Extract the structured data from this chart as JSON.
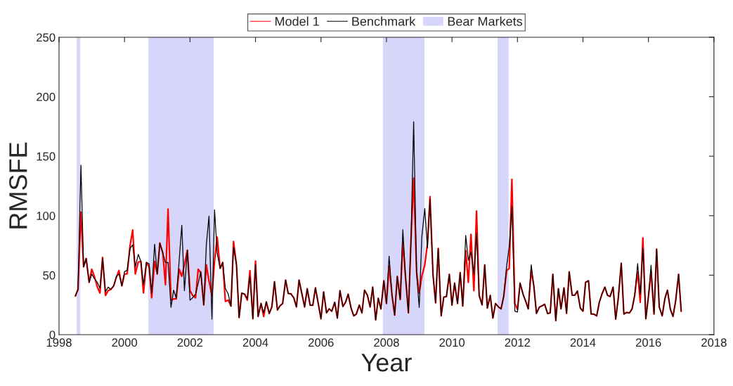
{
  "chart_data": {
    "type": "line",
    "xlabel": "Year",
    "ylabel": "RMSFE",
    "xlim": [
      1998,
      2018
    ],
    "xticks": [
      1998,
      2000,
      2002,
      2004,
      2006,
      2008,
      2010,
      2012,
      2014,
      2016,
      2018
    ],
    "ylim": [
      0,
      250
    ],
    "yticks": [
      0,
      50,
      100,
      150,
      200,
      250
    ],
    "grid": false,
    "legend": "top",
    "x": [
      1998.5,
      1998.58,
      1998.67,
      1998.75,
      1998.83,
      1998.92,
      1999.0,
      1999.08,
      1999.17,
      1999.25,
      1999.33,
      1999.42,
      1999.5,
      1999.58,
      1999.67,
      1999.75,
      1999.83,
      1999.92,
      2000.0,
      2000.08,
      2000.17,
      2000.25,
      2000.33,
      2000.42,
      2000.5,
      2000.58,
      2000.67,
      2000.75,
      2000.83,
      2000.92,
      2001.0,
      2001.08,
      2001.17,
      2001.25,
      2001.33,
      2001.42,
      2001.5,
      2001.58,
      2001.67,
      2001.75,
      2001.83,
      2001.92,
      2002.0,
      2002.08,
      2002.17,
      2002.25,
      2002.33,
      2002.42,
      2002.5,
      2002.58,
      2002.67,
      2002.75,
      2002.83,
      2002.92,
      2003.0,
      2003.08,
      2003.17,
      2003.25,
      2003.33,
      2003.42,
      2003.5,
      2003.58,
      2003.67,
      2003.75,
      2003.83,
      2003.92,
      2004.0,
      2004.08,
      2004.17,
      2004.25,
      2004.33,
      2004.42,
      2004.5,
      2004.58,
      2004.67,
      2004.75,
      2004.83,
      2004.92,
      2005.0,
      2005.08,
      2005.17,
      2005.25,
      2005.33,
      2005.42,
      2005.5,
      2005.58,
      2005.67,
      2005.75,
      2005.83,
      2005.92,
      2006.0,
      2006.08,
      2006.17,
      2006.25,
      2006.33,
      2006.42,
      2006.5,
      2006.58,
      2006.67,
      2006.75,
      2006.83,
      2006.92,
      2007.0,
      2007.08,
      2007.17,
      2007.25,
      2007.33,
      2007.42,
      2007.5,
      2007.58,
      2007.67,
      2007.75,
      2007.83,
      2007.92,
      2008.0,
      2008.08,
      2008.17,
      2008.25,
      2008.33,
      2008.42,
      2008.5,
      2008.58,
      2008.67,
      2008.75,
      2008.83,
      2008.92,
      2009.0,
      2009.08,
      2009.17,
      2009.25,
      2009.33,
      2009.42,
      2009.5,
      2009.58,
      2009.67,
      2009.75,
      2009.83,
      2009.92,
      2010.0,
      2010.08,
      2010.17,
      2010.25,
      2010.33,
      2010.42,
      2010.5,
      2010.58,
      2010.67,
      2010.75,
      2010.83,
      2010.92,
      2011.0,
      2011.08,
      2011.17,
      2011.25,
      2011.33,
      2011.42,
      2011.5,
      2011.58,
      2011.67,
      2011.75,
      2011.83,
      2011.92,
      2012.0,
      2012.08,
      2012.17,
      2012.25,
      2012.33,
      2012.42,
      2012.5,
      2012.58,
      2012.67,
      2012.75,
      2012.83,
      2012.92,
      2013.0,
      2013.08,
      2013.17,
      2013.25,
      2013.33,
      2013.42,
      2013.5,
      2013.58,
      2013.67,
      2013.75,
      2013.83,
      2013.92,
      2014.0,
      2014.08,
      2014.17,
      2014.25,
      2014.33,
      2014.42,
      2014.5,
      2014.58,
      2014.67,
      2014.75,
      2014.83,
      2014.92,
      2015.0,
      2015.08,
      2015.17,
      2015.25,
      2015.33,
      2015.42,
      2015.5,
      2015.58,
      2015.67,
      2015.75,
      2015.83,
      2015.92,
      2016.0,
      2016.08,
      2016.17,
      2016.25,
      2016.33,
      2016.42,
      2016.5,
      2016.58,
      2016.67,
      2016.75,
      2016.83,
      2016.92,
      2017.0
    ],
    "series": [
      {
        "name": "Model 1",
        "color": "#ff0000",
        "values": [
          32.5,
          38,
          103,
          57,
          64,
          44,
          55,
          49,
          40,
          35,
          65,
          33,
          37,
          38,
          41,
          48,
          54,
          41,
          51,
          51,
          75,
          88,
          51,
          61,
          61.6,
          35,
          60.7,
          57,
          31,
          61.6,
          51,
          77,
          68.6,
          42,
          105.6,
          29,
          30,
          30,
          55,
          49,
          58.7,
          71,
          37,
          33,
          31,
          55,
          52,
          25,
          58.7,
          45,
          33,
          62,
          82,
          55.7,
          60.7,
          28,
          29,
          24,
          78.4,
          58.7,
          14.4,
          35,
          34,
          29,
          53.8,
          13.3,
          61.8,
          15.3,
          26.2,
          15.3,
          27.6,
          17.8,
          23.3,
          44.5,
          20.7,
          24.3,
          26.2,
          45.9,
          34.6,
          34.4,
          31,
          23.3,
          45.9,
          34,
          23.3,
          38.6,
          24.7,
          24.7,
          39.4,
          25.7,
          13.3,
          36,
          18.3,
          21.7,
          19.7,
          27.2,
          14,
          37,
          23.7,
          27.2,
          34,
          22.3,
          15.8,
          17.3,
          24.9,
          18.3,
          37.4,
          33,
          23.3,
          40,
          12.4,
          30.6,
          21.6,
          45.3,
          26.2,
          57.7,
          33,
          16.4,
          49,
          29.5,
          78.4,
          49,
          18.4,
          80.4,
          131.6,
          52.8,
          35,
          49,
          58.7,
          76,
          116,
          50.8,
          26.8,
          72.5,
          15.9,
          31.6,
          32,
          50.7,
          24.8,
          43.3,
          26.2,
          52.2,
          24,
          70.5,
          44,
          84.3,
          37,
          104,
          33,
          25,
          58.7,
          22.3,
          33,
          14,
          26.2,
          23.3,
          21.7,
          32.2,
          53.8,
          55.7,
          130.6,
          26.2,
          21.2,
          43.3,
          34.1,
          28.2,
          21.6,
          53.8,
          41,
          17.9,
          23.2,
          24.2,
          25.6,
          17.7,
          18.3,
          50.8,
          11.8,
          38.6,
          21.6,
          39.4,
          17.9,
          52.8,
          33.1,
          33.1,
          36.7,
          22.3,
          19.7,
          44,
          45.3,
          17.3,
          17.3,
          15.8,
          27.2,
          34.1,
          40,
          33.1,
          32.1,
          40,
          13,
          31.1,
          60.1,
          17.3,
          18.7,
          18.3,
          21.6,
          33.1,
          52.8,
          27.2,
          81.4,
          13.4,
          32.1,
          52.8,
          17.3,
          71.9,
          23.2,
          15.8,
          30.1,
          37.4,
          21.2,
          15.3,
          28.2,
          50.8,
          19.5
        ]
      },
      {
        "name": "Benchmark",
        "color": "#000000",
        "values": [
          32.5,
          38,
          142.5,
          57,
          64,
          44,
          51,
          47,
          44,
          39,
          64,
          36,
          40,
          38,
          41,
          49,
          51,
          41,
          53,
          54,
          72.5,
          75.5,
          57,
          67.5,
          61.6,
          42,
          60.7,
          59.7,
          35,
          76,
          51,
          77,
          68.6,
          60.7,
          60.7,
          23,
          37.4,
          30.7,
          62.6,
          92,
          37,
          71,
          29,
          31,
          34,
          43,
          53,
          25,
          76,
          99.7,
          13,
          105,
          68.6,
          55.7,
          60.7,
          39,
          34,
          24,
          73.5,
          58.7,
          14.4,
          35,
          34,
          30,
          48.9,
          13.3,
          58.7,
          15.3,
          26.2,
          18.3,
          27.6,
          17.8,
          23.3,
          44.5,
          20.7,
          24.3,
          26.2,
          45.9,
          34.6,
          34.4,
          31,
          23.3,
          45.9,
          34,
          23.3,
          38.6,
          24.7,
          24.7,
          39.4,
          25.7,
          13.3,
          36,
          18.3,
          21.7,
          19.7,
          27.2,
          14,
          37,
          23.7,
          27.2,
          34,
          22.3,
          15.8,
          17.3,
          24.9,
          18.3,
          37.4,
          33,
          23.3,
          40,
          12.4,
          30.6,
          21.6,
          45.3,
          26.2,
          66,
          33,
          16.4,
          49,
          29.5,
          88.2,
          49,
          18.4,
          80.4,
          179,
          50.8,
          22.9,
          82.4,
          106,
          72.9,
          113.8,
          50.8,
          26.8,
          72.5,
          15.9,
          31.6,
          32,
          50.7,
          24.8,
          43.3,
          26.2,
          52.2,
          24,
          83.4,
          62.6,
          69.5,
          50.8,
          85.4,
          33,
          25,
          58.7,
          22.3,
          33,
          14,
          26.2,
          23.3,
          21.7,
          32.2,
          57.7,
          74.5,
          108,
          19.7,
          19,
          43.3,
          34.1,
          28.2,
          21.6,
          58.7,
          41,
          17.9,
          23.2,
          24.2,
          25.6,
          17.7,
          18.3,
          50.8,
          11.8,
          38.6,
          21.6,
          39.4,
          17.9,
          52.8,
          33.1,
          33.1,
          36.7,
          22.3,
          19.7,
          44,
          45.3,
          17.3,
          17.3,
          15.8,
          27.2,
          34.1,
          40,
          33.1,
          32.1,
          40,
          13,
          31.1,
          60.1,
          17.3,
          18.7,
          18.3,
          21.6,
          33.1,
          59.7,
          34.1,
          72.5,
          13.4,
          32.1,
          58.3,
          17.3,
          71.9,
          23.2,
          15.8,
          30.1,
          37.4,
          21.2,
          15.3,
          28.2,
          50.8,
          20.3
        ]
      }
    ],
    "bands": [
      {
        "axis": "x",
        "from": 1998.54,
        "to": 1998.65,
        "label": "Bear Markets",
        "color": "#d6d6fb"
      },
      {
        "axis": "x",
        "from": 2000.73,
        "to": 2002.72,
        "color": "#d6d6fb"
      },
      {
        "axis": "x",
        "from": 2007.89,
        "to": 2009.16,
        "color": "#d6d6fb"
      },
      {
        "axis": "x",
        "from": 2011.39,
        "to": 2011.73,
        "color": "#d6d6fb"
      }
    ]
  }
}
